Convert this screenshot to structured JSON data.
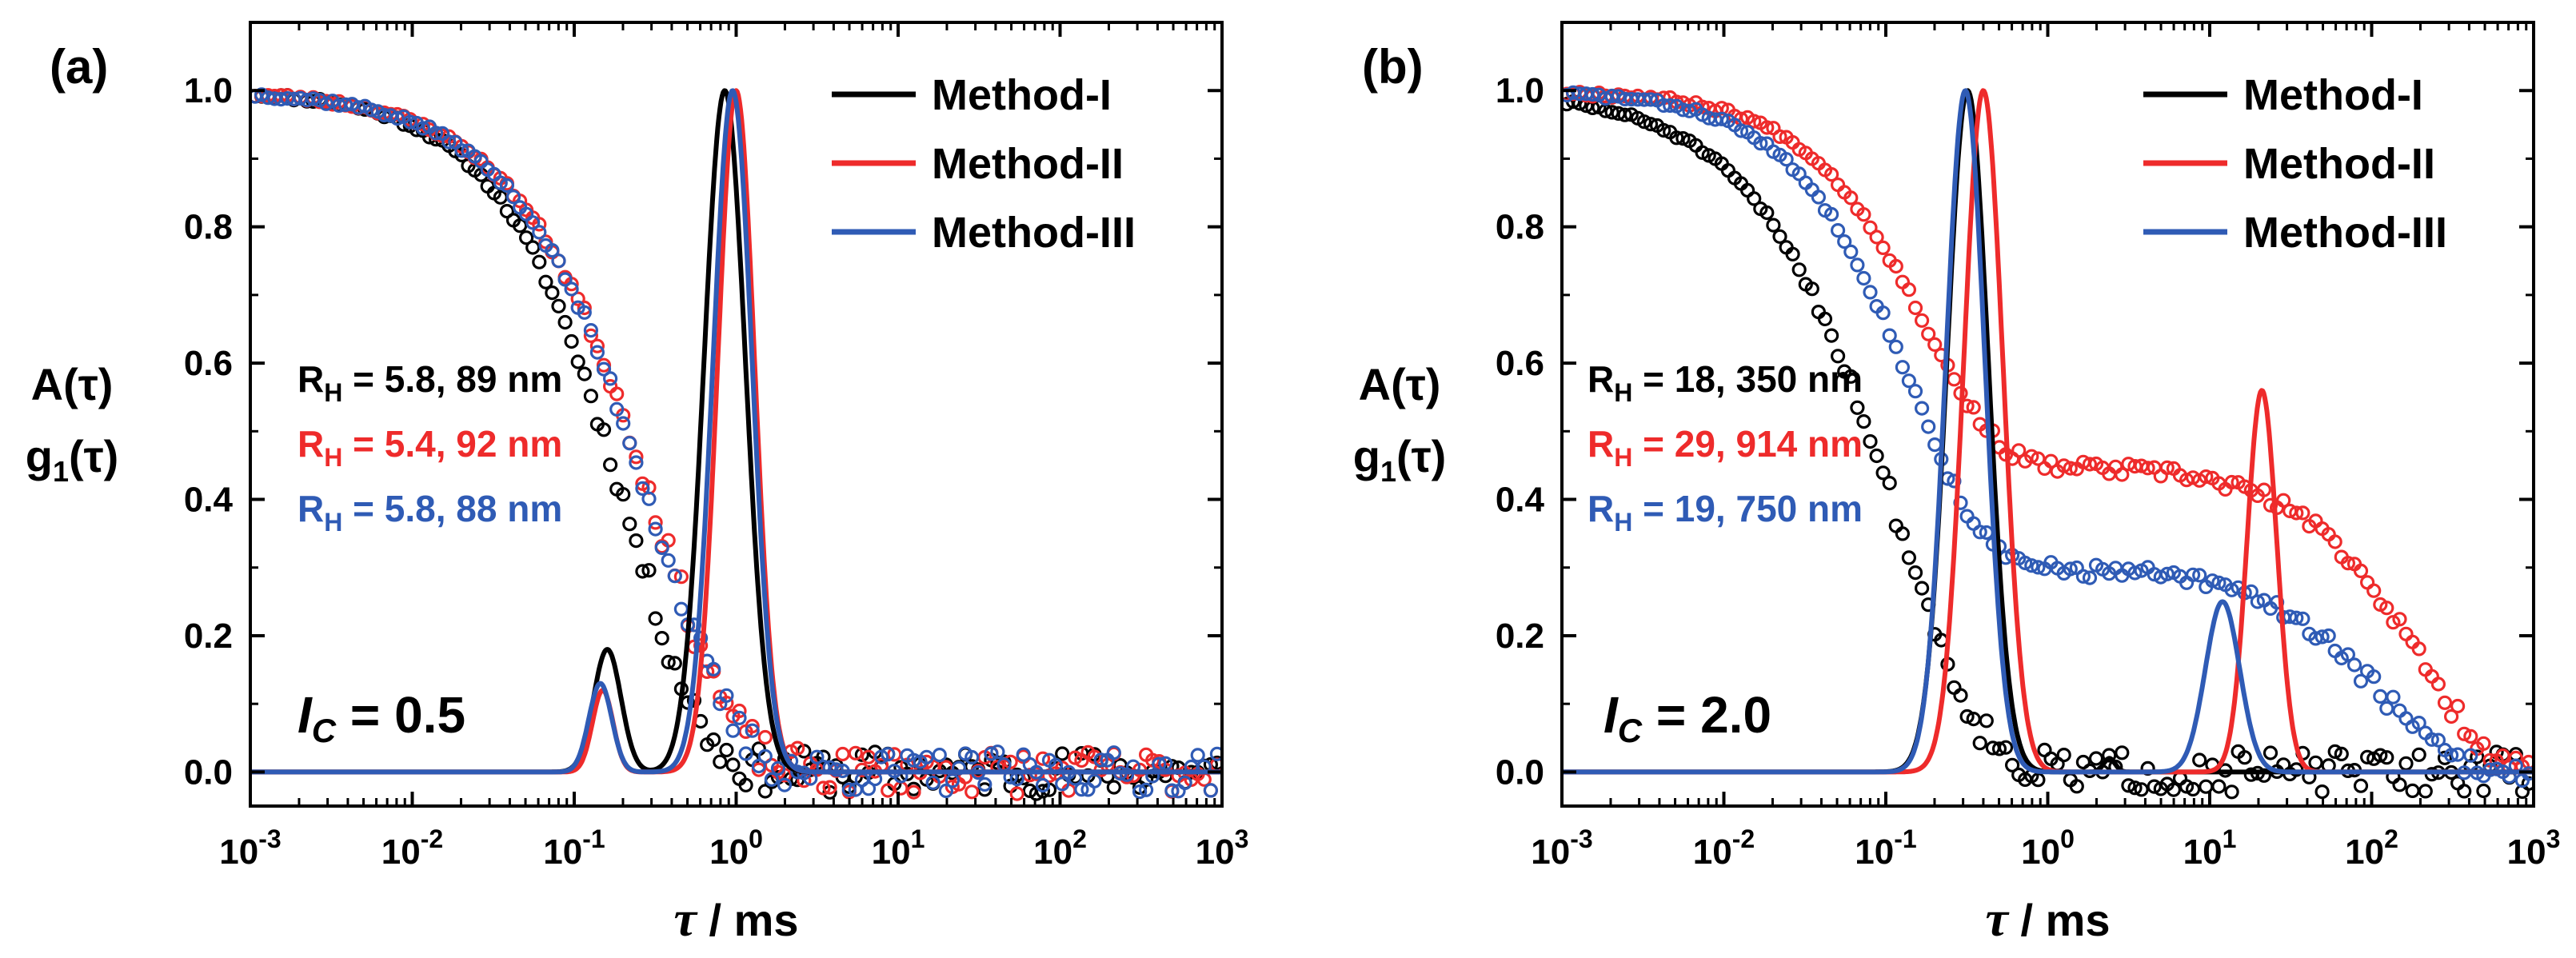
{
  "chart_data": [
    {
      "panel_label": "(a)",
      "type": "line+scatter",
      "xscale": "log",
      "xlim": [
        0.001,
        1000
      ],
      "ylim": [
        -0.05,
        1.1
      ],
      "x_ticks": [
        {
          "base": "10",
          "exp": "-3"
        },
        {
          "base": "10",
          "exp": "-2"
        },
        {
          "base": "10",
          "exp": "-1"
        },
        {
          "base": "10",
          "exp": "0"
        },
        {
          "base": "10",
          "exp": "1"
        },
        {
          "base": "10",
          "exp": "2"
        },
        {
          "base": "10",
          "exp": "3"
        }
      ],
      "y_ticks": [
        "0.0",
        "0.2",
        "0.4",
        "0.6",
        "0.8",
        "1.0"
      ],
      "xlabel": {
        "symbol": "τ",
        "unit": " / ms"
      },
      "ylabel": [
        "A(τ)",
        "g",
        "1",
        "(τ)"
      ],
      "legend": {
        "position": "top-right",
        "entries": [
          "Method-I",
          "Method-II",
          "Method-III"
        ]
      },
      "annotations": [
        {
          "prefix": "R",
          "sub": "H",
          "text": "= 5.8, 89 nm",
          "color": "#000000"
        },
        {
          "prefix": "R",
          "sub": "H",
          "text": "= 5.4, 92 nm",
          "color": "#ee2b2b"
        },
        {
          "prefix": "R",
          "sub": "H",
          "text": "= 5.8, 88 nm",
          "color": "#2f5bb5"
        }
      ],
      "ic": {
        "symbol": "I",
        "sub": "C",
        "text": " = 0.5"
      },
      "series": [
        {
          "name": "Method-I",
          "color": "#000000",
          "markers": {
            "decay_tau": [
              0.22
            ],
            "decay_w": [
              1.0
            ],
            "beta": 0.95,
            "jitter": 0.028,
            "seed": 11
          },
          "peaks": [
            {
              "center": 0.16,
              "amp": 0.18,
              "width": 0.12
            },
            {
              "center": 0.85,
              "amp": 1.0,
              "width": 0.18
            }
          ]
        },
        {
          "name": "Method-II",
          "color": "#ee2b2b",
          "markers": {
            "decay_tau": [
              0.33
            ],
            "decay_w": [
              1.0
            ],
            "beta": 0.88,
            "jitter": 0.028,
            "seed": 23
          },
          "peaks": [
            {
              "center": 0.15,
              "amp": 0.12,
              "width": 0.09
            },
            {
              "center": 1.0,
              "amp": 1.0,
              "width": 0.16
            }
          ]
        },
        {
          "name": "Method-III",
          "color": "#2f5bb5",
          "markers": {
            "decay_tau": [
              0.32
            ],
            "decay_w": [
              1.0
            ],
            "beta": 0.88,
            "jitter": 0.026,
            "seed": 37
          },
          "peaks": [
            {
              "center": 0.145,
              "amp": 0.13,
              "width": 0.1
            },
            {
              "center": 0.95,
              "amp": 1.0,
              "width": 0.17
            }
          ]
        }
      ]
    },
    {
      "panel_label": "(b)",
      "type": "line+scatter",
      "xscale": "log",
      "xlim": [
        0.001,
        1000
      ],
      "ylim": [
        -0.05,
        1.1
      ],
      "x_ticks": [
        {
          "base": "10",
          "exp": "-3"
        },
        {
          "base": "10",
          "exp": "-2"
        },
        {
          "base": "10",
          "exp": "-1"
        },
        {
          "base": "10",
          "exp": "0"
        },
        {
          "base": "10",
          "exp": "1"
        },
        {
          "base": "10",
          "exp": "2"
        },
        {
          "base": "10",
          "exp": "3"
        }
      ],
      "y_ticks": [
        "0.0",
        "0.2",
        "0.4",
        "0.6",
        "0.8",
        "1.0"
      ],
      "xlabel": {
        "symbol": "τ",
        "unit": " / ms"
      },
      "ylabel": [
        "A(τ)",
        "g",
        "1",
        "(τ)"
      ],
      "legend": {
        "position": "top-right",
        "entries": [
          "Method-I",
          "Method-II",
          "Method-III"
        ]
      },
      "annotations": [
        {
          "prefix": "R",
          "sub": "H",
          "text": "= 18, 350 nm",
          "color": "#000000"
        },
        {
          "prefix": "R",
          "sub": "H",
          "text": "= 29, 914 nm",
          "color": "#ee2b2b"
        },
        {
          "prefix": "R",
          "sub": "H",
          "text": "= 19, 750 nm",
          "color": "#2f5bb5"
        }
      ],
      "ic": {
        "symbol": "I",
        "sub": "C",
        "text": " = 2.0"
      },
      "series": [
        {
          "name": "Method-I",
          "color": "#000000",
          "markers": {
            "decay_tau": [
              0.12
            ],
            "decay_w": [
              1.0
            ],
            "beta": 0.85,
            "jitter": 0.026,
            "seed": 51
          },
          "peaks": [
            {
              "center": 0.32,
              "amp": 1.0,
              "width": 0.18
            },
            {
              "center": 2.4,
              "amp": 0.02,
              "width": 0.05
            }
          ]
        },
        {
          "name": "Method-II",
          "color": "#ee2b2b",
          "markers": {
            "decay_tau": [
              0.18,
              200
            ],
            "decay_w": [
              0.55,
              0.45
            ],
            "beta": 1.0,
            "jitter": 0.012,
            "seed": 67
          },
          "peaks": [
            {
              "center": 0.4,
              "amp": 1.0,
              "width": 0.17
            },
            {
              "center": 21,
              "amp": 0.56,
              "width": 0.13
            }
          ]
        },
        {
          "name": "Method-III",
          "color": "#2f5bb5",
          "markers": {
            "decay_tau": [
              0.15,
              120
            ],
            "decay_w": [
              0.7,
              0.3
            ],
            "beta": 1.0,
            "jitter": 0.012,
            "seed": 83
          },
          "peaks": [
            {
              "center": 0.31,
              "amp": 1.0,
              "width": 0.17
            },
            {
              "center": 12,
              "amp": 0.25,
              "width": 0.15
            }
          ]
        }
      ]
    }
  ]
}
